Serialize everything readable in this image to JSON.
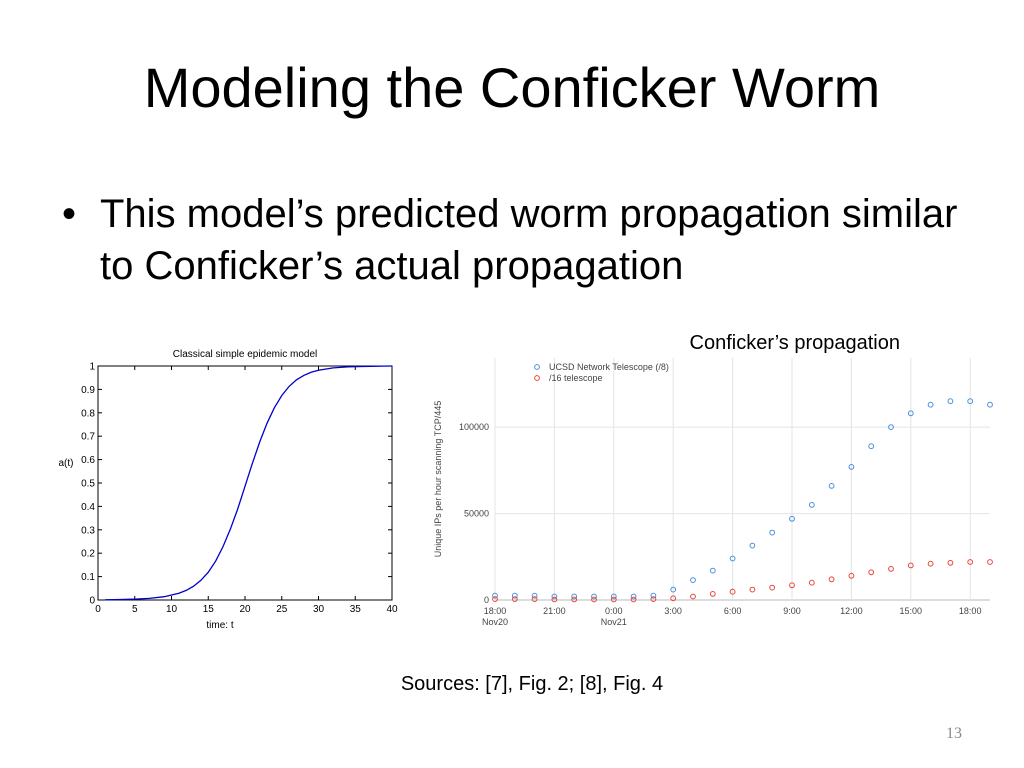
{
  "slide": {
    "title": "Modeling the Conficker Worm",
    "bullet": "This model’s predicted worm propagation similar to Conficker’s actual propagation",
    "sources": "Sources: [7], Fig. 2; [8], Fig. 4",
    "page_number": "13"
  },
  "chart_data": [
    {
      "type": "line",
      "title": "Classical simple epidemic model",
      "xlabel": "time:  t",
      "ylabel": "a(t)",
      "xlim": [
        0,
        40
      ],
      "ylim": [
        0,
        1
      ],
      "xticks": [
        "0",
        "5",
        "10",
        "15",
        "20",
        "25",
        "30",
        "35",
        "40"
      ],
      "yticks": [
        "0",
        "0.1",
        "0.2",
        "0.3",
        "0.4",
        "0.5",
        "0.6",
        "0.7",
        "0.8",
        "0.9",
        "1"
      ],
      "grid": false,
      "series": [
        {
          "color": "#0000cc",
          "x": [
            1,
            3,
            5,
            7,
            9,
            11,
            12,
            13,
            14,
            15,
            16,
            17,
            18,
            19,
            20,
            21,
            22,
            23,
            24,
            25,
            26,
            27,
            28,
            29,
            30,
            32,
            34,
            36,
            38,
            40
          ],
          "y": [
            0.001,
            0.002,
            0.004,
            0.007,
            0.014,
            0.029,
            0.041,
            0.059,
            0.084,
            0.119,
            0.166,
            0.227,
            0.302,
            0.389,
            0.486,
            0.583,
            0.675,
            0.755,
            0.822,
            0.874,
            0.913,
            0.941,
            0.96,
            0.973,
            0.982,
            0.992,
            0.996,
            0.998,
            0.999,
            1.0
          ]
        }
      ]
    },
    {
      "type": "scatter",
      "title": "Conficker’s propagation",
      "xlabel": "",
      "ylabel": "Unique IPs per hour scanning TCP/445",
      "ylim": [
        0,
        140000
      ],
      "yticks": [
        {
          "value": 0,
          "label": "0"
        },
        {
          "value": 50000,
          "label": "50000"
        },
        {
          "value": 100000,
          "label": "100000"
        }
      ],
      "xlim": [
        0,
        25
      ],
      "xticks": [
        {
          "value": 0,
          "label": "18:00",
          "sub": "Nov20"
        },
        {
          "value": 3,
          "label": "21:00",
          "sub": ""
        },
        {
          "value": 6,
          "label": "0:00",
          "sub": "Nov21"
        },
        {
          "value": 9,
          "label": "3:00",
          "sub": ""
        },
        {
          "value": 12,
          "label": "6:00",
          "sub": ""
        },
        {
          "value": 15,
          "label": "9:00",
          "sub": ""
        },
        {
          "value": 18,
          "label": "12:00",
          "sub": ""
        },
        {
          "value": 21,
          "label": "15:00",
          "sub": ""
        },
        {
          "value": 24,
          "label": "18:00",
          "sub": ""
        }
      ],
      "grid": true,
      "legend_position": "top-left",
      "series": [
        {
          "name": "UCSD Network Telescope (/8)",
          "color": "#4a90d9",
          "x": [
            0,
            1,
            2,
            3,
            4,
            5,
            6,
            7,
            8,
            9,
            10,
            11,
            12,
            13,
            14,
            15,
            16,
            17,
            18,
            19,
            20,
            21,
            22,
            23,
            24,
            25
          ],
          "y": [
            2500,
            2500,
            2500,
            2000,
            2000,
            2000,
            2000,
            2000,
            2500,
            6000,
            11500,
            17000,
            24000,
            31500,
            39000,
            47000,
            55000,
            66000,
            77000,
            89000,
            100000,
            108000,
            113000,
            115000,
            115000,
            113000
          ]
        },
        {
          "name": "/16 telescope",
          "color": "#e8473c",
          "x": [
            0,
            1,
            2,
            3,
            4,
            5,
            6,
            7,
            8,
            9,
            10,
            11,
            12,
            13,
            14,
            15,
            16,
            17,
            18,
            19,
            20,
            21,
            22,
            23,
            24,
            25
          ],
          "y": [
            500,
            500,
            500,
            300,
            300,
            300,
            300,
            300,
            500,
            1000,
            2000,
            3500,
            4800,
            6000,
            7200,
            8500,
            10000,
            12000,
            14000,
            16000,
            18000,
            20000,
            21000,
            21500,
            22000,
            22000
          ]
        }
      ]
    }
  ]
}
